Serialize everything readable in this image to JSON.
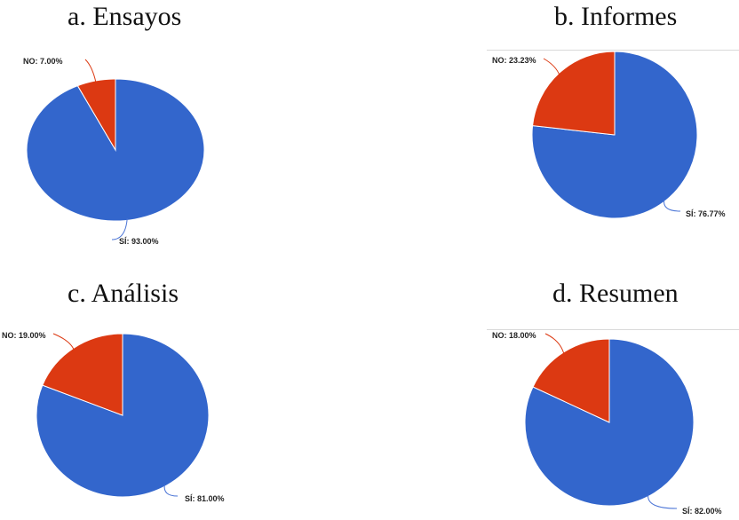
{
  "colors": {
    "si": "#3366cc",
    "no": "#dc3912",
    "si_leader": "#4a74d6",
    "no_leader": "#dc3912"
  },
  "chart_data": [
    {
      "type": "pie",
      "title": "a. Ensayos",
      "slices": [
        {
          "name": "NO",
          "value": 7.0,
          "label": "NO: 7.00%"
        },
        {
          "name": "SÍ",
          "value": 93.0,
          "label": "SÍ: 93.00%"
        }
      ]
    },
    {
      "type": "pie",
      "title": "b. Informes",
      "slices": [
        {
          "name": "NO",
          "value": 23.23,
          "label": "NO: 23.23%"
        },
        {
          "name": "SÍ",
          "value": 76.77,
          "label": "SÍ: 76.77%"
        }
      ]
    },
    {
      "type": "pie",
      "title": "c. Análisis",
      "slices": [
        {
          "name": "NO",
          "value": 19.0,
          "label": "NO: 19.00%"
        },
        {
          "name": "SÍ",
          "value": 81.0,
          "label": "SÍ: 81.00%"
        }
      ]
    },
    {
      "type": "pie",
      "title": "d. Resumen",
      "slices": [
        {
          "name": "NO",
          "value": 18.0,
          "label": "NO: 18.00%"
        },
        {
          "name": "SÍ",
          "value": 82.0,
          "label": "SÍ: 82.00%"
        }
      ]
    }
  ]
}
